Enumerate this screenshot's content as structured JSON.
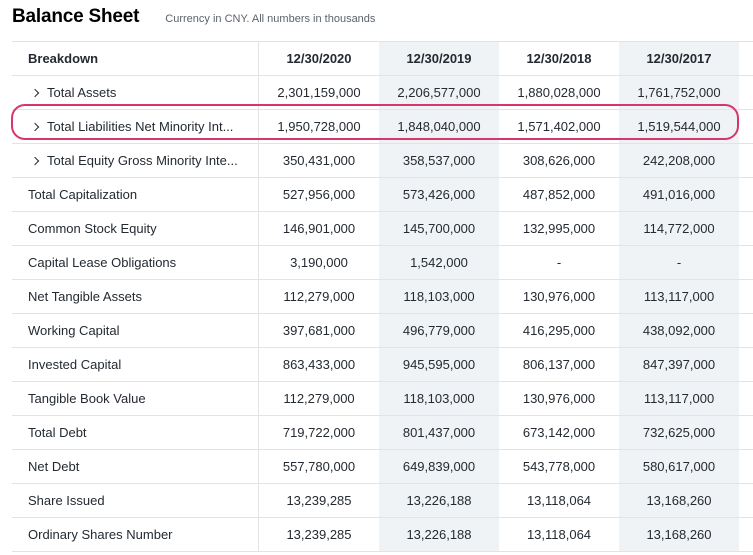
{
  "header": {
    "title": "Balance Sheet",
    "subtitle": "Currency in CNY. All numbers in thousands"
  },
  "table": {
    "breakdown_label": "Breakdown",
    "columns": [
      "12/30/2020",
      "12/30/2019",
      "12/30/2018",
      "12/30/2017"
    ],
    "rows": [
      {
        "label": "Total Assets",
        "expandable": true,
        "values": [
          "2,301,159,000",
          "2,206,577,000",
          "1,880,028,000",
          "1,761,752,000"
        ]
      },
      {
        "label": "Total Liabilities Net Minority Int...",
        "expandable": true,
        "highlighted": true,
        "values": [
          "1,950,728,000",
          "1,848,040,000",
          "1,571,402,000",
          "1,519,544,000"
        ]
      },
      {
        "label": "Total Equity Gross Minority Inte...",
        "expandable": true,
        "values": [
          "350,431,000",
          "358,537,000",
          "308,626,000",
          "242,208,000"
        ]
      },
      {
        "label": "Total Capitalization",
        "expandable": false,
        "values": [
          "527,956,000",
          "573,426,000",
          "487,852,000",
          "491,016,000"
        ]
      },
      {
        "label": "Common Stock Equity",
        "expandable": false,
        "values": [
          "146,901,000",
          "145,700,000",
          "132,995,000",
          "114,772,000"
        ]
      },
      {
        "label": "Capital Lease Obligations",
        "expandable": false,
        "values": [
          "3,190,000",
          "1,542,000",
          "-",
          "-"
        ]
      },
      {
        "label": "Net Tangible Assets",
        "expandable": false,
        "values": [
          "112,279,000",
          "118,103,000",
          "130,976,000",
          "113,117,000"
        ]
      },
      {
        "label": "Working Capital",
        "expandable": false,
        "values": [
          "397,681,000",
          "496,779,000",
          "416,295,000",
          "438,092,000"
        ]
      },
      {
        "label": "Invested Capital",
        "expandable": false,
        "values": [
          "863,433,000",
          "945,595,000",
          "806,137,000",
          "847,397,000"
        ]
      },
      {
        "label": "Tangible Book Value",
        "expandable": false,
        "values": [
          "112,279,000",
          "118,103,000",
          "130,976,000",
          "113,117,000"
        ]
      },
      {
        "label": "Total Debt",
        "expandable": false,
        "values": [
          "719,722,000",
          "801,437,000",
          "673,142,000",
          "732,625,000"
        ]
      },
      {
        "label": "Net Debt",
        "expandable": false,
        "values": [
          "557,780,000",
          "649,839,000",
          "543,778,000",
          "580,617,000"
        ]
      },
      {
        "label": "Share Issued",
        "expandable": false,
        "values": [
          "13,239,285",
          "13,226,188",
          "13,118,064",
          "13,168,260"
        ]
      },
      {
        "label": "Ordinary Shares Number",
        "expandable": false,
        "values": [
          "13,239,285",
          "13,226,188",
          "13,118,064",
          "13,168,260"
        ]
      }
    ]
  },
  "colors": {
    "highlight": "#d6366c",
    "shade": "#f0f3f5",
    "border": "#e0e4e9"
  },
  "icons": {
    "expand": "chevron-right-icon"
  }
}
